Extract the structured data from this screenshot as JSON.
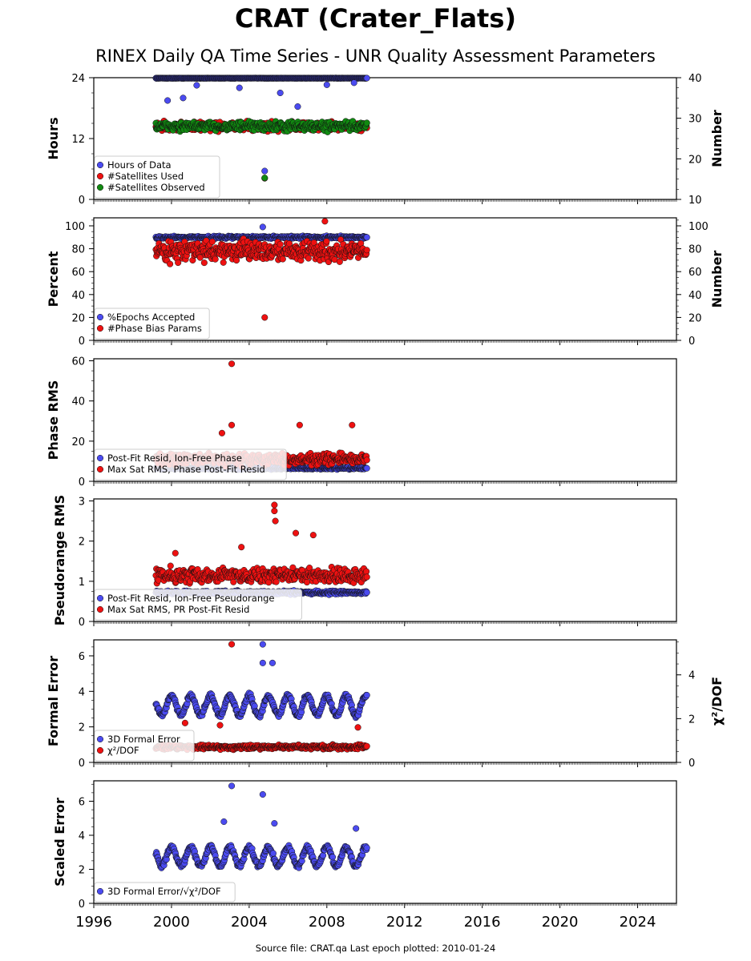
{
  "title": "CRAT (Crater_Flats)",
  "subtitle": "RINEX Daily QA Time Series - UNR Quality Assessment Parameters",
  "footer": "Source file: CRAT.qa Last epoch plotted: 2010-01-24",
  "colors": {
    "blue": "#4b4bf0",
    "red": "#ee1111",
    "green": "#118a11",
    "marker_edge": "#111111"
  },
  "chart_data": [
    {
      "type": "scatter",
      "xlim": [
        1996,
        2026
      ],
      "xticks": [
        "1996",
        "2000",
        "2004",
        "2008",
        "2012",
        "2016",
        "2020",
        "2024"
      ],
      "ylabel": "Hours",
      "ylim": [
        0,
        24
      ],
      "yticks": [
        "0",
        "12",
        "24"
      ],
      "right_ylabel": "Number",
      "right_ylim": [
        10,
        40
      ],
      "right_yticks": [
        "10",
        "20",
        "30",
        "40"
      ],
      "legend": {
        "position": "lower-left",
        "entries": [
          "Hours of Data",
          "#Satellites Used",
          "#Satellites Observed"
        ]
      },
      "series": [
        {
          "name": "Hours of Data",
          "axis": "left",
          "color": "blue",
          "start": 1999.2,
          "end": 2010.06,
          "level": 23.9,
          "amplitude": 0.05,
          "outliers": [
            [
              1999.8,
              19.5
            ],
            [
              2000.6,
              20.0
            ],
            [
              2001.3,
              22.5
            ],
            [
              2003.5,
              22.0
            ],
            [
              2005.6,
              21.0
            ],
            [
              2006.5,
              18.3
            ],
            [
              2008.0,
              22.6
            ],
            [
              2009.4,
              23.0
            ],
            [
              2004.8,
              5.6
            ]
          ]
        },
        {
          "name": "#Satellites Used",
          "axis": "right",
          "color": "red",
          "start": 1999.2,
          "end": 2010.06,
          "level": 28,
          "amplitude": 1.6,
          "outliers": [
            [
              2004.8,
              15.2
            ]
          ]
        },
        {
          "name": "#Satellites Observed",
          "axis": "right",
          "color": "green",
          "start": 1999.2,
          "end": 2010.06,
          "level": 28,
          "amplitude": 1.6,
          "outliers": [
            [
              2004.8,
              15.3
            ]
          ]
        }
      ]
    },
    {
      "type": "scatter",
      "xlim": [
        1996,
        2026
      ],
      "xticks": [
        "1996",
        "2000",
        "2004",
        "2008",
        "2012",
        "2016",
        "2020",
        "2024"
      ],
      "ylabel": "Percent",
      "ylim": [
        0,
        107
      ],
      "yticks": [
        "0",
        "20",
        "40",
        "60",
        "80",
        "100"
      ],
      "right_ylabel": "Number",
      "right_ylim": [
        0,
        107
      ],
      "right_yticks": [
        "0",
        "20",
        "40",
        "60",
        "80",
        "100"
      ],
      "legend": {
        "position": "lower-left",
        "entries": [
          "%Epochs Accepted",
          "#Phase Bias Params"
        ]
      },
      "series": [
        {
          "name": "%Epochs Accepted",
          "axis": "left",
          "color": "blue",
          "start": 1999.2,
          "end": 2010.06,
          "level": 90,
          "amplitude": 1.5,
          "outliers": [
            [
              2004.7,
              99
            ]
          ]
        },
        {
          "name": "#Phase Bias Params",
          "axis": "right",
          "color": "red",
          "start": 1999.2,
          "end": 2010.06,
          "level": 78,
          "amplitude": 12,
          "outliers": [
            [
              2004.8,
              20
            ],
            [
              2007.9,
              104
            ]
          ]
        }
      ]
    },
    {
      "type": "scatter",
      "xlim": [
        1996,
        2026
      ],
      "xticks": [
        "1996",
        "2000",
        "2004",
        "2008",
        "2012",
        "2016",
        "2020",
        "2024"
      ],
      "ylabel": "Phase RMS",
      "ylim": [
        0,
        61
      ],
      "yticks": [
        "0",
        "20",
        "40",
        "60"
      ],
      "legend": {
        "position": "lower-left",
        "entries": [
          "Post-Fit Resid, Ion-Free Phase",
          "Max Sat RMS, Phase Post-Fit Resid"
        ]
      },
      "series": [
        {
          "name": "Post-Fit Resid, Ion-Free Phase",
          "axis": "left",
          "color": "blue",
          "start": 1999.2,
          "end": 2010.06,
          "level": 6.5,
          "amplitude": 0.8,
          "outliers": []
        },
        {
          "name": "Max Sat RMS, Phase Post-Fit Resid",
          "axis": "left",
          "color": "red",
          "start": 1999.2,
          "end": 2010.06,
          "level": 11,
          "amplitude": 4,
          "outliers": [
            [
              2003.1,
              58.5
            ],
            [
              2003.1,
              28
            ],
            [
              2006.6,
              28
            ],
            [
              2009.3,
              28
            ],
            [
              2002.6,
              24
            ]
          ]
        }
      ]
    },
    {
      "type": "scatter",
      "xlim": [
        1996,
        2026
      ],
      "xticks": [
        "1996",
        "2000",
        "2004",
        "2008",
        "2012",
        "2016",
        "2020",
        "2024"
      ],
      "ylabel": "Pseudorange RMS",
      "ylim": [
        0,
        3.05
      ],
      "yticks": [
        "0",
        "1",
        "2",
        "3"
      ],
      "legend": {
        "position": "lower-left",
        "entries": [
          "Post-Fit Resid, Ion-Free Pseudorange",
          "Max Sat RMS, PR Post-Fit Resid"
        ]
      },
      "series": [
        {
          "name": "Post-Fit Resid, Ion-Free Pseudorange",
          "axis": "left",
          "color": "blue",
          "start": 1999.2,
          "end": 2010.06,
          "level": 0.72,
          "amplitude": 0.06,
          "outliers": []
        },
        {
          "name": "Max Sat RMS, PR Post-Fit Resid",
          "axis": "left",
          "color": "red",
          "start": 1999.2,
          "end": 2010.06,
          "level": 1.15,
          "amplitude": 0.25,
          "outliers": [
            [
              2005.3,
              2.9
            ],
            [
              2005.3,
              2.75
            ],
            [
              2005.35,
              2.5
            ],
            [
              2003.6,
              1.85
            ],
            [
              2000.2,
              1.7
            ],
            [
              2006.4,
              2.2
            ],
            [
              2007.3,
              2.15
            ]
          ]
        }
      ]
    },
    {
      "type": "scatter",
      "xlim": [
        1996,
        2026
      ],
      "xticks": [
        "1996",
        "2000",
        "2004",
        "2008",
        "2012",
        "2016",
        "2020",
        "2024"
      ],
      "ylabel": "Formal Error",
      "ylim": [
        0,
        6.9
      ],
      "yticks": [
        "0",
        "2",
        "4",
        "6"
      ],
      "right_ylabel": "χ²/DOF",
      "right_ylim": [
        0,
        5.6
      ],
      "right_yticks": [
        "0",
        "2",
        "4"
      ],
      "legend": {
        "position": "lower-left",
        "entries": [
          "3D Formal Error",
          "χ²/DOF"
        ]
      },
      "series": [
        {
          "name": "3D Formal Error",
          "axis": "left",
          "color": "blue",
          "start": 1999.2,
          "end": 2010.06,
          "level": 3.2,
          "amplitude": 0.55,
          "seasonal": true,
          "outliers": [
            [
              2004.7,
              6.65
            ],
            [
              2004.7,
              5.6
            ],
            [
              2005.2,
              5.6
            ]
          ]
        },
        {
          "name": "χ²/DOF",
          "axis": "right",
          "color": "red",
          "start": 1999.2,
          "end": 2010.06,
          "level": 0.7,
          "amplitude": 0.15,
          "outliers": [
            [
              2003.1,
              5.4
            ],
            [
              2000.7,
              1.8
            ],
            [
              2002.5,
              1.7
            ],
            [
              2009.6,
              1.6
            ]
          ]
        }
      ]
    },
    {
      "type": "scatter",
      "xlim": [
        1996,
        2026
      ],
      "xticks": [
        "1996",
        "2000",
        "2004",
        "2008",
        "2012",
        "2016",
        "2020",
        "2024"
      ],
      "ylabel": "Scaled Error",
      "ylim": [
        0,
        7.2
      ],
      "yticks": [
        "0",
        "2",
        "4",
        "6"
      ],
      "legend": {
        "position": "lower-left",
        "entries": [
          "3D Formal Error/√χ²/DOF"
        ]
      },
      "series": [
        {
          "name": "3D Formal Error/√χ²/DOF",
          "axis": "left",
          "color": "blue",
          "start": 1999.2,
          "end": 2010.06,
          "level": 2.75,
          "amplitude": 0.55,
          "seasonal": true,
          "outliers": [
            [
              2003.1,
              6.9
            ],
            [
              2004.7,
              6.4
            ],
            [
              2002.7,
              4.8
            ],
            [
              2005.3,
              4.7
            ],
            [
              2009.5,
              4.4
            ]
          ]
        }
      ]
    }
  ]
}
